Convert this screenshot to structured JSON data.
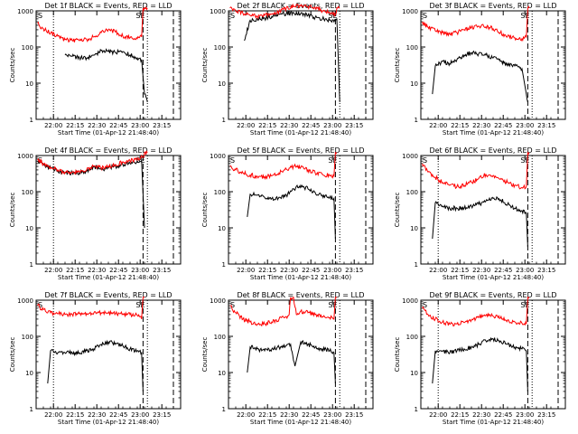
{
  "figure": {
    "x_label": "Start Time (01-Apr-12 21:48:40)",
    "y_label": "Counts/sec",
    "x_tick_labels": [
      "22:00",
      "22:15",
      "22:30",
      "22:45",
      "23:00",
      "23:15"
    ],
    "y_tick_labels": [
      "1",
      "10",
      "100",
      "1000"
    ],
    "corner_marks": [
      "S",
      "SE"
    ]
  },
  "chart_data": [
    {
      "type": "line",
      "title": "Det 1f BLACK = Events, RED = LLD",
      "yscale": "log",
      "ylim": [
        1,
        1000
      ],
      "x_ticks": [
        "22:00",
        "22:15",
        "22:30",
        "22:45",
        "23:00",
        "23:15"
      ],
      "series": [
        {
          "name": "Events",
          "color": "#000000",
          "x_min": [
            20,
            25,
            30,
            35,
            40,
            45,
            50,
            55,
            60,
            65,
            70,
            71,
            73,
            75,
            77
          ],
          "values": [
            60,
            55,
            50,
            50,
            60,
            80,
            75,
            70,
            75,
            60,
            50,
            48,
            45,
            5,
            3
          ]
        },
        {
          "name": "LLD",
          "color": "#ff0000",
          "x_min": [
            1,
            5,
            10,
            15,
            20,
            25,
            30,
            35,
            40,
            45,
            50,
            55,
            60,
            65,
            70,
            73,
            74,
            75,
            77
          ],
          "values": [
            450,
            320,
            240,
            200,
            160,
            150,
            150,
            160,
            190,
            250,
            300,
            260,
            200,
            180,
            170,
            190,
            1200,
            1200,
            1200
          ]
        }
      ],
      "vlines": [
        {
          "x_min": 0,
          "style": "solid"
        },
        {
          "x_min": 12,
          "style": "dotted"
        },
        {
          "x_min": 74,
          "style": "dashed"
        },
        {
          "x_min": 77,
          "style": "dotted"
        },
        {
          "x_min": 95,
          "style": "dashed"
        }
      ]
    },
    {
      "type": "line",
      "title": "Det 2f BLACK = Events, RED = LLD",
      "yscale": "log",
      "ylim": [
        1,
        1000
      ],
      "x_ticks": [
        "22:00",
        "22:15",
        "22:30",
        "22:45",
        "23:00",
        "23:15"
      ],
      "series": [
        {
          "name": "Events",
          "color": "#000000",
          "x_min": [
            11,
            15,
            20,
            25,
            30,
            35,
            40,
            45,
            50,
            55,
            60,
            65,
            70,
            73,
            75,
            77
          ],
          "values": [
            150,
            550,
            600,
            620,
            700,
            800,
            850,
            900,
            850,
            750,
            650,
            600,
            550,
            500,
            600,
            3
          ]
        },
        {
          "name": "LLD",
          "color": "#ff0000",
          "x_min": [
            1,
            5,
            10,
            15,
            20,
            25,
            30,
            35,
            40,
            45,
            50,
            55,
            60,
            65,
            70,
            74,
            75,
            77
          ],
          "values": [
            1200,
            1000,
            850,
            750,
            700,
            750,
            800,
            950,
            1200,
            1300,
            1350,
            1300,
            1200,
            1000,
            900,
            800,
            1200,
            1200
          ]
        }
      ],
      "vlines": [
        {
          "x_min": 0,
          "style": "solid"
        },
        {
          "x_min": 74,
          "style": "dashed"
        },
        {
          "x_min": 77,
          "style": "dotted"
        },
        {
          "x_min": 95,
          "style": "dashed"
        }
      ]
    },
    {
      "type": "line",
      "title": "Det 3f BLACK = Events, RED = LLD",
      "yscale": "log",
      "ylim": [
        1,
        1000
      ],
      "x_ticks": [
        "22:00",
        "22:15",
        "22:30",
        "22:45",
        "23:00",
        "23:15"
      ],
      "series": [
        {
          "name": "Events",
          "color": "#000000",
          "x_min": [
            8,
            10,
            15,
            20,
            25,
            30,
            35,
            40,
            45,
            50,
            55,
            60,
            65,
            70,
            73,
            74
          ],
          "values": [
            5,
            30,
            40,
            35,
            45,
            60,
            70,
            65,
            60,
            50,
            40,
            35,
            30,
            25,
            5,
            3
          ]
        },
        {
          "name": "LLD",
          "color": "#ff0000",
          "x_min": [
            1,
            5,
            10,
            15,
            20,
            25,
            30,
            35,
            40,
            45,
            50,
            55,
            60,
            65,
            70,
            73,
            74,
            75
          ],
          "values": [
            500,
            350,
            280,
            250,
            230,
            250,
            300,
            350,
            380,
            360,
            320,
            250,
            200,
            180,
            170,
            190,
            1200,
            1200
          ]
        }
      ],
      "vlines": [
        {
          "x_min": 0,
          "style": "solid"
        },
        {
          "x_min": 74,
          "style": "dashed"
        },
        {
          "x_min": 77,
          "style": "dotted"
        },
        {
          "x_min": 95,
          "style": "dashed"
        }
      ]
    },
    {
      "type": "line",
      "title": "Det 4f BLACK = Events, RED = LLD",
      "yscale": "log",
      "ylim": [
        1,
        1000
      ],
      "x_ticks": [
        "22:00",
        "22:15",
        "22:30",
        "22:45",
        "23:00",
        "23:15"
      ],
      "series": [
        {
          "name": "Events",
          "color": "#000000",
          "x_min": [
            1,
            5,
            10,
            15,
            20,
            25,
            30,
            35,
            40,
            45,
            50,
            55,
            60,
            65,
            70,
            73,
            75
          ],
          "values": [
            700,
            550,
            450,
            380,
            330,
            330,
            340,
            370,
            500,
            420,
            450,
            500,
            560,
            600,
            700,
            720,
            10
          ]
        },
        {
          "name": "LLD",
          "color": "#ff0000",
          "x_min": [
            1,
            5,
            10,
            15,
            20,
            25,
            30,
            35,
            40,
            45,
            50,
            55,
            60,
            65,
            70,
            74,
            75,
            77
          ],
          "values": [
            750,
            600,
            480,
            400,
            350,
            350,
            360,
            400,
            520,
            460,
            500,
            560,
            650,
            720,
            800,
            900,
            1200,
            1200
          ]
        }
      ],
      "vlines": [
        {
          "x_min": 0,
          "style": "solid"
        },
        {
          "x_min": 12,
          "style": "dotted"
        },
        {
          "x_min": 74,
          "style": "dashed"
        },
        {
          "x_min": 77,
          "style": "dotted"
        },
        {
          "x_min": 95,
          "style": "dashed"
        }
      ]
    },
    {
      "type": "line",
      "title": "Det 5f BLACK = Events, RED = LLD",
      "yscale": "log",
      "ylim": [
        1,
        1000
      ],
      "x_ticks": [
        "22:00",
        "22:15",
        "22:30",
        "22:45",
        "23:00",
        "23:15"
      ],
      "series": [
        {
          "name": "Events",
          "color": "#000000",
          "x_min": [
            13,
            15,
            20,
            25,
            30,
            35,
            40,
            45,
            50,
            55,
            60,
            65,
            70,
            73,
            74
          ],
          "values": [
            20,
            85,
            80,
            70,
            65,
            70,
            80,
            120,
            150,
            120,
            95,
            80,
            70,
            65,
            5
          ]
        },
        {
          "name": "LLD",
          "color": "#ff0000",
          "x_min": [
            1,
            5,
            10,
            15,
            20,
            25,
            30,
            35,
            40,
            45,
            50,
            55,
            60,
            65,
            70,
            73,
            74,
            75
          ],
          "values": [
            500,
            400,
            330,
            290,
            260,
            260,
            280,
            330,
            420,
            500,
            470,
            400,
            330,
            300,
            280,
            270,
            1200,
            1200
          ]
        }
      ],
      "vlines": [
        {
          "x_min": 0,
          "style": "solid"
        },
        {
          "x_min": 74,
          "style": "dashed"
        },
        {
          "x_min": 77,
          "style": "dotted"
        },
        {
          "x_min": 95,
          "style": "dashed"
        }
      ]
    },
    {
      "type": "line",
      "title": "Det 6f BLACK = Events, RED = LLD",
      "yscale": "log",
      "ylim": [
        1,
        1000
      ],
      "x_ticks": [
        "22:00",
        "22:15",
        "22:30",
        "22:45",
        "23:00",
        "23:15"
      ],
      "series": [
        {
          "name": "Events",
          "color": "#000000",
          "x_min": [
            8,
            10,
            15,
            20,
            25,
            30,
            35,
            40,
            45,
            50,
            55,
            60,
            65,
            70,
            73,
            74
          ],
          "values": [
            5,
            50,
            40,
            35,
            35,
            35,
            40,
            45,
            55,
            65,
            60,
            45,
            35,
            30,
            25,
            3
          ]
        },
        {
          "name": "LLD",
          "color": "#ff0000",
          "x_min": [
            1,
            5,
            10,
            15,
            20,
            25,
            30,
            35,
            40,
            45,
            50,
            55,
            60,
            65,
            70,
            73,
            74,
            75
          ],
          "values": [
            600,
            350,
            250,
            180,
            150,
            140,
            150,
            180,
            230,
            300,
            280,
            220,
            180,
            150,
            130,
            140,
            1200,
            1200
          ]
        }
      ],
      "vlines": [
        {
          "x_min": 0,
          "style": "solid"
        },
        {
          "x_min": 12,
          "style": "dotted"
        },
        {
          "x_min": 74,
          "style": "dashed"
        },
        {
          "x_min": 77,
          "style": "dotted"
        },
        {
          "x_min": 95,
          "style": "dashed"
        }
      ]
    },
    {
      "type": "line",
      "title": "Det 7f BLACK = Events, RED = LLD",
      "yscale": "log",
      "ylim": [
        1,
        1000
      ],
      "x_ticks": [
        "22:00",
        "22:15",
        "22:30",
        "22:45",
        "23:00",
        "23:15"
      ],
      "series": [
        {
          "name": "Events",
          "color": "#000000",
          "x_min": [
            8,
            10,
            15,
            20,
            25,
            30,
            35,
            40,
            45,
            50,
            55,
            60,
            65,
            70,
            73,
            74
          ],
          "values": [
            5,
            40,
            35,
            35,
            35,
            35,
            40,
            45,
            60,
            70,
            65,
            55,
            45,
            40,
            35,
            3
          ]
        },
        {
          "name": "LLD",
          "color": "#ff0000",
          "x_min": [
            1,
            5,
            10,
            15,
            20,
            25,
            30,
            35,
            40,
            45,
            50,
            55,
            60,
            65,
            70,
            73,
            74,
            75
          ],
          "values": [
            700,
            550,
            450,
            420,
            400,
            400,
            420,
            430,
            450,
            450,
            440,
            430,
            420,
            400,
            380,
            300,
            1200,
            1200
          ]
        }
      ],
      "vlines": [
        {
          "x_min": 0,
          "style": "solid"
        },
        {
          "x_min": 12,
          "style": "dotted"
        },
        {
          "x_min": 74,
          "style": "dashed"
        },
        {
          "x_min": 77,
          "style": "dotted"
        },
        {
          "x_min": 95,
          "style": "dashed"
        }
      ]
    },
    {
      "type": "line",
      "title": "Det 8f BLACK = Events, RED = LLD",
      "yscale": "log",
      "ylim": [
        1,
        1000
      ],
      "x_ticks": [
        "22:00",
        "22:15",
        "22:30",
        "22:45",
        "23:00",
        "23:15"
      ],
      "series": [
        {
          "name": "Events",
          "color": "#000000",
          "x_min": [
            13,
            15,
            20,
            25,
            30,
            35,
            40,
            43,
            46,
            50,
            55,
            60,
            65,
            70,
            73,
            74
          ],
          "values": [
            10,
            50,
            45,
            40,
            45,
            50,
            55,
            60,
            15,
            70,
            60,
            50,
            45,
            40,
            35,
            5
          ]
        },
        {
          "name": "LLD",
          "color": "#ff0000",
          "x_min": [
            1,
            5,
            10,
            15,
            20,
            25,
            30,
            35,
            40,
            42,
            43,
            45,
            47,
            50,
            55,
            60,
            65,
            70,
            73,
            74,
            75
          ],
          "values": [
            700,
            450,
            300,
            250,
            220,
            220,
            250,
            300,
            350,
            400,
            1200,
            1200,
            400,
            500,
            450,
            400,
            350,
            330,
            300,
            1200,
            1200
          ]
        }
      ],
      "vlines": [
        {
          "x_min": 0,
          "style": "solid"
        },
        {
          "x_min": 74,
          "style": "dashed"
        },
        {
          "x_min": 77,
          "style": "dotted"
        },
        {
          "x_min": 95,
          "style": "dashed"
        }
      ]
    },
    {
      "type": "line",
      "title": "Det 9f BLACK = Events, RED = LLD",
      "yscale": "log",
      "ylim": [
        1,
        1000
      ],
      "x_ticks": [
        "22:00",
        "22:15",
        "22:30",
        "22:45",
        "23:00",
        "23:15"
      ],
      "series": [
        {
          "name": "Events",
          "color": "#000000",
          "x_min": [
            8,
            10,
            15,
            20,
            25,
            30,
            35,
            40,
            45,
            50,
            55,
            60,
            65,
            70,
            73,
            74
          ],
          "values": [
            5,
            40,
            40,
            35,
            40,
            45,
            50,
            60,
            75,
            85,
            75,
            60,
            50,
            45,
            40,
            3
          ]
        },
        {
          "name": "LLD",
          "color": "#ff0000",
          "x_min": [
            1,
            5,
            10,
            15,
            20,
            25,
            30,
            35,
            40,
            45,
            50,
            55,
            60,
            65,
            70,
            73,
            74,
            75
          ],
          "values": [
            600,
            400,
            300,
            250,
            220,
            220,
            240,
            280,
            330,
            380,
            360,
            320,
            280,
            250,
            230,
            220,
            1200,
            1200
          ]
        }
      ],
      "vlines": [
        {
          "x_min": 0,
          "style": "solid"
        },
        {
          "x_min": 12,
          "style": "dotted"
        },
        {
          "x_min": 74,
          "style": "dashed"
        },
        {
          "x_min": 77,
          "style": "dotted"
        },
        {
          "x_min": 95,
          "style": "dashed"
        }
      ]
    }
  ]
}
